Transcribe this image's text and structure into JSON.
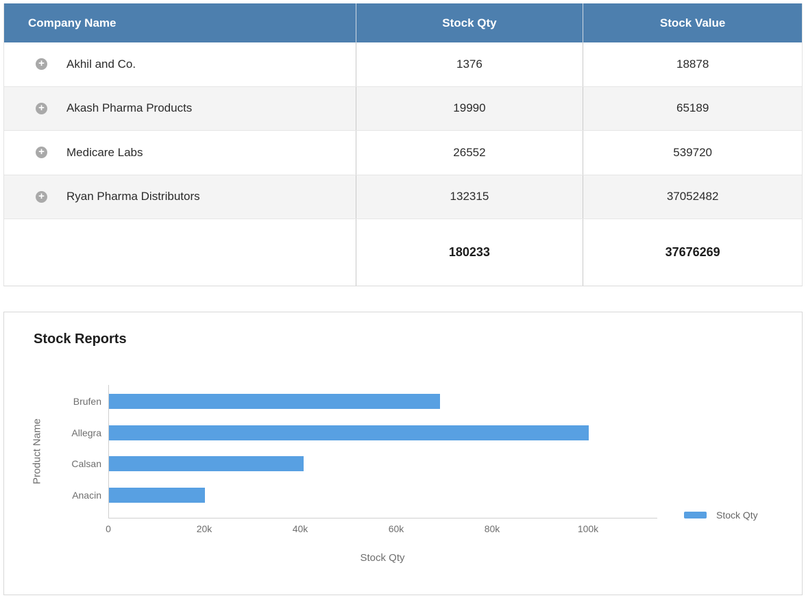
{
  "colors": {
    "header_bg": "#4d7fae",
    "bar_blue": "#58a0e2",
    "alt_row_bg": "#f4f4f4",
    "expand_icon_bg": "#a9a9a9"
  },
  "table": {
    "columns": [
      "Company Name",
      "Stock Qty",
      "Stock Value"
    ],
    "expand_icon": "+",
    "rows": [
      {
        "company": "Akhil and Co.",
        "qty": "1376",
        "value": "18878"
      },
      {
        "company": "Akash Pharma Products",
        "qty": "19990",
        "value": "65189"
      },
      {
        "company": "Medicare Labs",
        "qty": "26552",
        "value": "539720"
      },
      {
        "company": "Ryan Pharma Distributors",
        "qty": "132315",
        "value": "37052482"
      }
    ],
    "totals": {
      "qty": "180233",
      "value": "37676269"
    }
  },
  "chart_data": {
    "type": "bar",
    "orientation": "horizontal",
    "title": "Stock Reports",
    "categories": [
      "Brufen",
      "Allegra",
      "Calsan",
      "Anacin"
    ],
    "values": [
      69000,
      100000,
      40500,
      20000
    ],
    "series": [
      {
        "name": "Stock Qty",
        "values": [
          69000,
          100000,
          40500,
          20000
        ]
      }
    ],
    "xlabel": "Stock Qty",
    "ylabel": "Product Name",
    "xlim": [
      0,
      114000
    ],
    "xtick_labels": [
      "0",
      "20k",
      "40k",
      "60k",
      "80k",
      "100k"
    ],
    "xtick_values": [
      0,
      20000,
      40000,
      60000,
      80000,
      100000
    ],
    "grid": false,
    "legend": {
      "position": "right",
      "items": [
        {
          "label": "Stock Qty",
          "color": "#58a0e2"
        }
      ]
    }
  }
}
